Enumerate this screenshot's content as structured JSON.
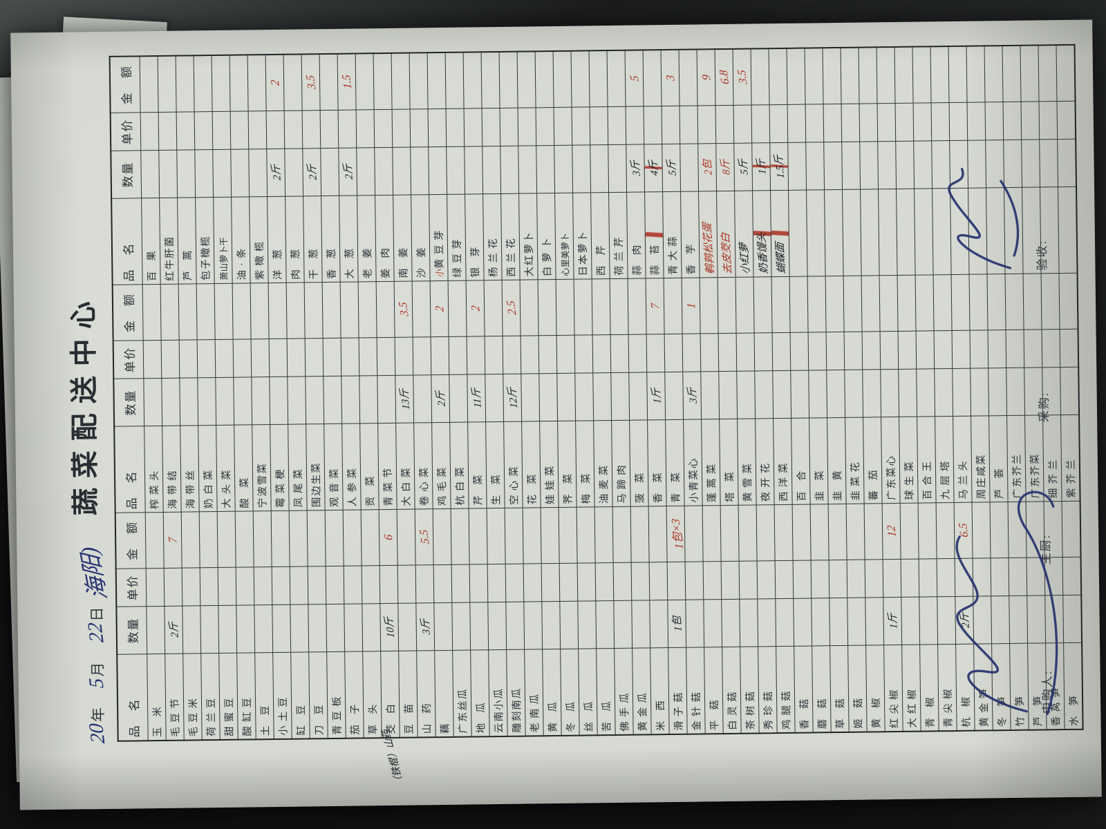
{
  "title": "蔬菜配送中心",
  "date": {
    "year_value": "20",
    "year_label": "年",
    "month_value": "5",
    "month_label": "月",
    "day_value": "22",
    "day_label": "日",
    "note": "海阳)"
  },
  "table": {
    "headers": [
      "品　名",
      "数量",
      "单价",
      "金　额"
    ],
    "groups": [
      {
        "name": "group-1",
        "items": [
          {
            "name": "玉米"
          },
          {
            "name": "毛豆节",
            "qty": "2斤",
            "amt": "7"
          },
          {
            "name": "毛豆米"
          },
          {
            "name": "荷兰豆"
          },
          {
            "name": "甜蜜豆"
          },
          {
            "name": "酸缸豆"
          },
          {
            "name": "土豆"
          },
          {
            "name": "小土豆"
          },
          {
            "name": "缸豆"
          },
          {
            "name": "刀豆"
          },
          {
            "name": "青豆板"
          },
          {
            "name": "茄子"
          },
          {
            "name": "草头"
          },
          {
            "name": "茭白",
            "qty": "10斤",
            "amt": "6"
          },
          {
            "name": "豆苗"
          },
          {
            "name": "山药",
            "qty": "3斤",
            "amt": "5.5"
          },
          {
            "name": "藕"
          },
          {
            "name": "广东丝瓜"
          },
          {
            "name": "地瓜"
          },
          {
            "name": "云南小瓜"
          },
          {
            "name": "雕刻南瓜"
          },
          {
            "name": "老南瓜"
          },
          {
            "name": "黄瓜"
          },
          {
            "name": "冬瓜"
          },
          {
            "name": "丝瓜"
          },
          {
            "name": "苦瓜"
          },
          {
            "name": "佛手瓜"
          },
          {
            "name": "黄金瓜"
          },
          {
            "name": "米西"
          },
          {
            "name": "滑子菇",
            "qty": "1包",
            "amt": "1包×3"
          },
          {
            "name": "金针菇"
          },
          {
            "name": "平菇"
          },
          {
            "name": "白灵菇"
          },
          {
            "name": "茶树菇"
          },
          {
            "name": "秀珍菇"
          },
          {
            "name": "鸡腿菇"
          },
          {
            "name": "香菇"
          },
          {
            "name": "蘑菇"
          },
          {
            "name": "草菇"
          },
          {
            "name": "姬菇"
          },
          {
            "name": "黄椒"
          },
          {
            "name": "红尖椒",
            "qty": "1斤",
            "amt": "12"
          },
          {
            "name": "大红椒"
          },
          {
            "name": "青椒"
          },
          {
            "name": "青尖椒"
          },
          {
            "name": "杭椒",
            "qty": "2斤",
            "amt": "6.5"
          },
          {
            "name": "黄金笋"
          },
          {
            "name": "冬笋"
          },
          {
            "name": "竹笋"
          },
          {
            "name": "芦笋"
          },
          {
            "name": "香莴笋"
          },
          {
            "name": "水笋"
          }
        ]
      },
      {
        "name": "group-2",
        "items": [
          {
            "name": "榨菜头"
          },
          {
            "name": "海带结"
          },
          {
            "name": "海带丝"
          },
          {
            "name": "奶白菜"
          },
          {
            "name": "大头菜"
          },
          {
            "name": "酸菜"
          },
          {
            "name": "宁波雪菜"
          },
          {
            "name": "霉菜梗"
          },
          {
            "name": "凤尾菜"
          },
          {
            "name": "围边生菜"
          },
          {
            "name": "观音菜"
          },
          {
            "name": "人参菜"
          },
          {
            "name": "贡菜"
          },
          {
            "name": "青菜节"
          },
          {
            "name": "大白菜",
            "qty": "13斤",
            "amt": "3.5"
          },
          {
            "name": "卷心菜"
          },
          {
            "name": "鸡毛菜",
            "qty": "2斤",
            "amt": "2"
          },
          {
            "name": "杭白菜"
          },
          {
            "name": "芹菜",
            "qty": "11斤",
            "amt": "2"
          },
          {
            "name": "生菜"
          },
          {
            "name": "空心菜",
            "qty": "12斤",
            "amt": "2.5"
          },
          {
            "name": "花菜"
          },
          {
            "name": "娃娃菜"
          },
          {
            "name": "荠菜"
          },
          {
            "name": "梅菜"
          },
          {
            "name": "油麦菜"
          },
          {
            "name": "马蹄肉"
          },
          {
            "name": "菠菜"
          },
          {
            "name": "香菜",
            "qty": "1斤",
            "amt": "7"
          },
          {
            "name": "青菜"
          },
          {
            "name": "小青菜心",
            "qty": "3斤",
            "amt": "1"
          },
          {
            "name": "蓬蒿菜"
          },
          {
            "name": "塔菜"
          },
          {
            "name": "黄雪菜"
          },
          {
            "name": "夜开花"
          },
          {
            "name": "西洋菜"
          },
          {
            "name": "百合"
          },
          {
            "name": "韭菜"
          },
          {
            "name": "韭黄"
          },
          {
            "name": "韭菜花"
          },
          {
            "name": "蕃茄"
          },
          {
            "name": "广东菜心"
          },
          {
            "name": "球生菜"
          },
          {
            "name": "百合王"
          },
          {
            "name": "九层塔"
          },
          {
            "name": "马兰头"
          },
          {
            "name": "周庄咸菜"
          },
          {
            "name": "芦荟"
          },
          {
            "name": "广东芥兰"
          },
          {
            "name": "广东芥菜"
          },
          {
            "name": "细芥兰"
          },
          {
            "name": "紫芥兰"
          }
        ]
      },
      {
        "name": "group-3",
        "items": [
          {
            "name": "百果"
          },
          {
            "name": "红牛肝菌"
          },
          {
            "name": "芦蒿"
          },
          {
            "name": "包子橄榄"
          },
          {
            "name": "萧山萝卜干"
          },
          {
            "name": "油·条"
          },
          {
            "name": "紫橄榄"
          },
          {
            "name": "洋葱",
            "qty": "2斤",
            "amt": "2"
          },
          {
            "name": "肉葱"
          },
          {
            "name": "干葱",
            "qty": "2斤",
            "amt": "3.5"
          },
          {
            "name": "香葱"
          },
          {
            "name": "大葱",
            "qty": "2斤",
            "amt": "1.5"
          },
          {
            "name": "老姜"
          },
          {
            "name": "姜肉"
          },
          {
            "name": "南姜"
          },
          {
            "name": "沙姜"
          },
          {
            "name": "黄豆芽",
            "pre": "小"
          },
          {
            "name": "绿豆芽"
          },
          {
            "name": "银芽"
          },
          {
            "name": "杨兰花"
          },
          {
            "name": "西兰花"
          },
          {
            "name": "大红萝卜"
          },
          {
            "name": "白萝卜"
          },
          {
            "name": "心里美萝卜"
          },
          {
            "name": "日本萝卜"
          },
          {
            "name": "西芹"
          },
          {
            "name": "荷兰芹"
          },
          {
            "name": "蒜肉",
            "qty": "3斤",
            "amt": "5"
          },
          {
            "name": "蒜苔",
            "qty": "4斤",
            "struck": true
          },
          {
            "name": "青大蒜",
            "qty": "5斤",
            "amt": "3"
          },
          {
            "name": "香芋"
          },
          {
            "hw": "鹌鹑松花蛋",
            "ink": "r",
            "qty": "2包",
            "amt": "9"
          },
          {
            "hw": "去皮茭白",
            "ink": "r",
            "qty": "8斤",
            "amt": "6.8"
          },
          {
            "hw": "小红萝",
            "ink": "k",
            "qty": "5斤",
            "amt": "3.5"
          },
          {
            "hw": "奶香馒头",
            "ink": "k",
            "qty": "1斤",
            "struck": true
          },
          {
            "hw": "蝴蝶面",
            "ink": "k",
            "qty": "1.5斤",
            "struck": true
          },
          {},
          {},
          {},
          {},
          {},
          {},
          {},
          {},
          {},
          {},
          {},
          {},
          {},
          {},
          {},
          {}
        ]
      }
    ]
  },
  "margin_note": "（铁棍）山药",
  "footer": [
    {
      "label": "申购人:"
    },
    {
      "label": "主厨:"
    },
    {
      "label": "采购:"
    },
    {
      "label": "验收:"
    }
  ],
  "ink_colors": {
    "black": "#1c1d23",
    "red": "#ab3526",
    "blue": "#273273"
  }
}
